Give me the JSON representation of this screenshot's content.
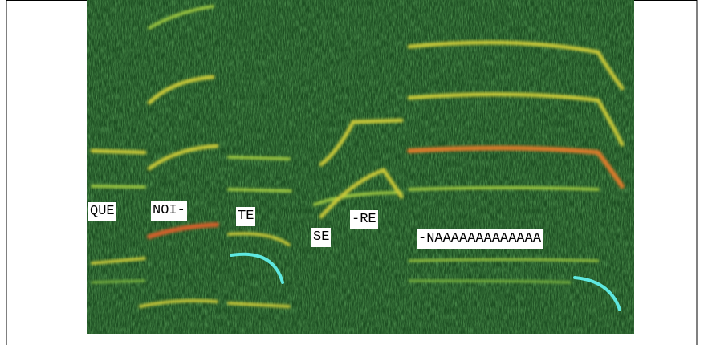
{
  "labels": [
    "QUE",
    "NOI-",
    "TE",
    "SE",
    "-RE",
    "-NAAAAAAAAAAAAA"
  ]
}
